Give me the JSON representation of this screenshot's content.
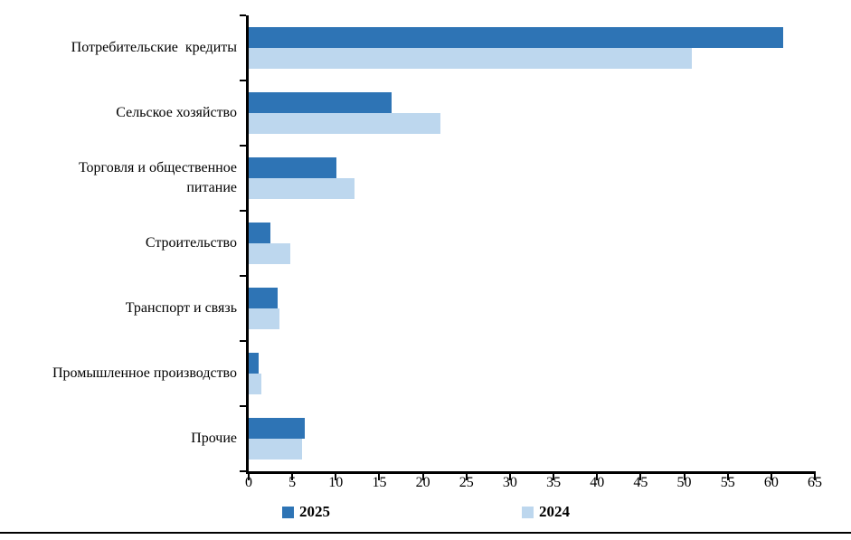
{
  "chart_data": {
    "type": "bar",
    "orientation": "horizontal",
    "title": "",
    "xlabel": "",
    "ylabel": "",
    "grid": false,
    "legend_position": "bottom",
    "xlim": [
      0,
      65
    ],
    "x_ticks": [
      0,
      5,
      10,
      15,
      20,
      25,
      30,
      35,
      40,
      45,
      50,
      55,
      60,
      65
    ],
    "categories": [
      "Потребительские  кредиты",
      "Сельское хозяйство",
      "Торговля и общественное\nпитание",
      "Строительство",
      "Транспорт и связь",
      "Промышленное производство",
      "Прочие"
    ],
    "series": [
      {
        "name": "2025",
        "color": "#2E74B5",
        "values": [
          61.4,
          16.4,
          10.1,
          2.5,
          3.3,
          1.1,
          6.4
        ]
      },
      {
        "name": "2024",
        "color": "#BDD7EE",
        "values": [
          50.9,
          22.0,
          12.2,
          4.8,
          3.5,
          1.5,
          6.1
        ]
      }
    ]
  },
  "legend": {
    "items": [
      {
        "label": "2025",
        "color": "#2E74B5"
      },
      {
        "label": "2024",
        "color": "#BDD7EE"
      }
    ]
  },
  "colors": {
    "axis": "#000000",
    "series_2025": "#2E74B5",
    "series_2024": "#BDD7EE"
  }
}
